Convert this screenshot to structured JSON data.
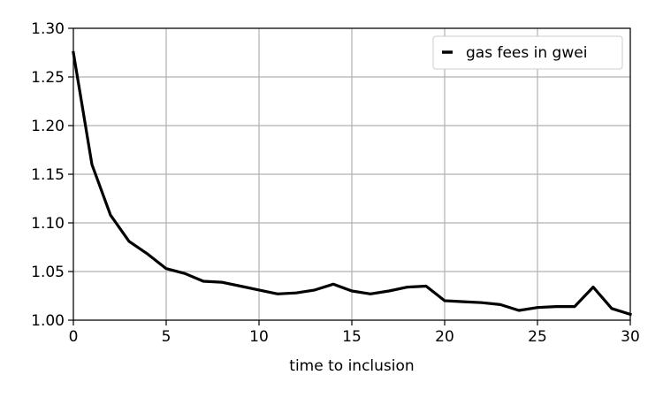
{
  "chart_data": {
    "type": "line",
    "title": "",
    "xlabel": "time to inclusion",
    "ylabel": "",
    "xlim": [
      0,
      30
    ],
    "ylim": [
      1.0,
      1.3
    ],
    "xticks": [
      0,
      5,
      10,
      15,
      20,
      25,
      30
    ],
    "yticks": [
      1.0,
      1.05,
      1.1,
      1.15,
      1.2,
      1.25,
      1.3
    ],
    "xtick_labels": [
      "0",
      "5",
      "10",
      "15",
      "20",
      "25",
      "30"
    ],
    "ytick_labels": [
      "1.00",
      "1.05",
      "1.10",
      "1.15",
      "1.20",
      "1.25",
      "1.30"
    ],
    "grid": true,
    "legend_position": "top-right",
    "series": [
      {
        "name": "gas fees in gwei",
        "color": "#000000",
        "x": [
          0,
          1,
          2,
          3,
          4,
          5,
          6,
          7,
          8,
          9,
          10,
          11,
          12,
          13,
          14,
          15,
          16,
          17,
          18,
          19,
          20,
          21,
          22,
          23,
          24,
          25,
          26,
          27,
          28,
          29,
          30
        ],
        "y": [
          1.275,
          1.16,
          1.108,
          1.081,
          1.068,
          1.053,
          1.048,
          1.04,
          1.039,
          1.035,
          1.031,
          1.027,
          1.028,
          1.031,
          1.037,
          1.03,
          1.027,
          1.03,
          1.034,
          1.035,
          1.02,
          1.019,
          1.018,
          1.016,
          1.01,
          1.013,
          1.014,
          1.014,
          1.034,
          1.012,
          1.006
        ]
      }
    ]
  }
}
